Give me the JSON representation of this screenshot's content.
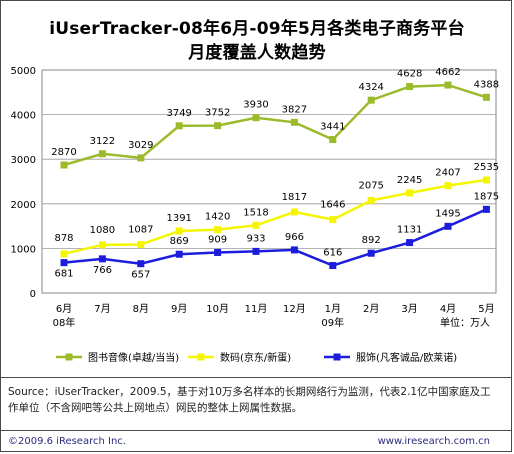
{
  "chart_data": {
    "type": "line",
    "title": "iUserTracker-08年6月-09年5月各类电子商务平台",
    "subtitle": "月度覆盖人数趋势",
    "unit_note": "单位：万人",
    "categories": [
      "6月",
      "7月",
      "8月",
      "9月",
      "10月",
      "11月",
      "12月",
      "1月",
      "2月",
      "3月",
      "4月",
      "5月"
    ],
    "category_sublabels": {
      "0": "08年",
      "7": "09年"
    },
    "ylim": [
      0,
      5000
    ],
    "yticks": [
      0,
      1000,
      2000,
      3000,
      4000,
      5000
    ],
    "grid": true,
    "legend_position": "bottom",
    "series": [
      {
        "name": "图书音像(卓越/当当)",
        "color": "#9bbb2b",
        "values": [
          2870,
          3122,
          3029,
          3749,
          3752,
          3930,
          3827,
          3441,
          4324,
          4628,
          4662,
          4388
        ]
      },
      {
        "name": "数码(京东/新蛋)",
        "color": "#f5f500",
        "values": [
          878,
          1080,
          1087,
          1391,
          1420,
          1518,
          1817,
          1646,
          2075,
          2245,
          2407,
          2535
        ]
      },
      {
        "name": "服饰(凡客诚品/欧莱诺)",
        "color": "#1c1cdc",
        "values": [
          681,
          766,
          657,
          869,
          909,
          933,
          966,
          616,
          892,
          1131,
          1495,
          1875
        ]
      }
    ]
  },
  "note": "Source：iUserTracker，2009.5，基于对10万多名样本的长期网络行为监测，代表2.1亿中国家庭及工作单位（不含网吧等公共上网地点）网民的整体上网属性数据。",
  "footer": {
    "copyright": "©2009.6 iResearch Inc.",
    "website": "www.iresearch.com.cn"
  }
}
